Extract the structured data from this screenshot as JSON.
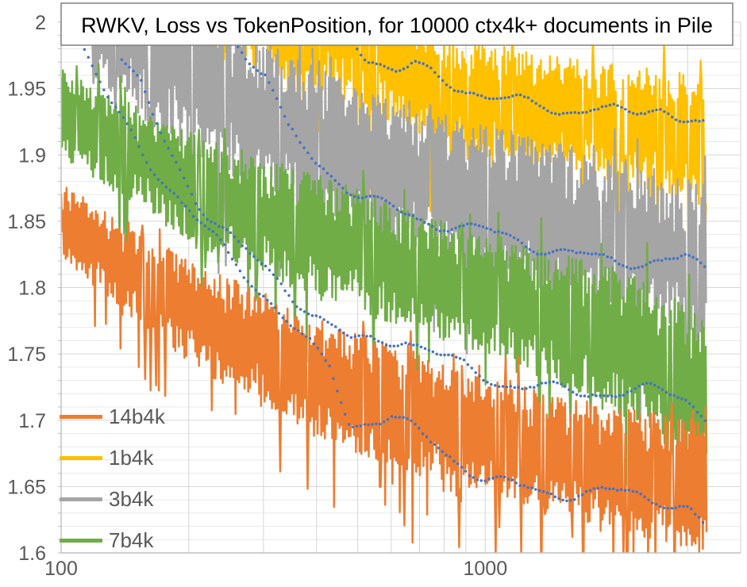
{
  "chart_data": {
    "type": "line",
    "title": "RWKV, Loss vs TokenPosition, for 10000 ctx4k+ documents in Pile",
    "xlabel": "",
    "ylabel": "",
    "x_axis": {
      "scale": "log",
      "min": 100,
      "max": 4000,
      "labeled_ticks": [
        100,
        1000
      ],
      "tick_label_strings": [
        "100",
        "1000"
      ],
      "minor_ticks": [
        200,
        300,
        400,
        500,
        600,
        700,
        800,
        900,
        1000,
        2000,
        3000,
        4000
      ]
    },
    "y_axis": {
      "min": 1.6,
      "max": 2.0,
      "major_step": 0.05,
      "minor_step": 0.01,
      "tick_labels": [
        "2",
        "1.95",
        "1.9",
        "1.85",
        "1.8",
        "1.75",
        "1.7",
        "1.65",
        "1.6"
      ]
    },
    "data_end_x": 3327,
    "legend": [
      {
        "label": "14b4k",
        "color": "#ED7D31"
      },
      {
        "label": "1b4k",
        "color": "#FFC000"
      },
      {
        "label": "3b4k",
        "color": "#A5A5A5"
      },
      {
        "label": "7b4k",
        "color": "#70AD47"
      }
    ],
    "series": [
      {
        "name": "1b4k",
        "color": "#FFC000",
        "x": [
          190,
          350,
          521,
          802,
          1200,
          1670,
          2300,
          3000,
          3327
        ],
        "center": [
          2.03,
          2.005,
          1.985,
          1.947,
          1.937,
          1.929,
          1.921,
          1.915,
          1.906
        ],
        "half": [
          0.05,
          0.05,
          0.05,
          0.044,
          0.043,
          0.043,
          0.046,
          0.046,
          0.05
        ]
      },
      {
        "name": "3b4k",
        "color": "#A5A5A5",
        "x": [
          118,
          170,
          260,
          402,
          802,
          1467,
          2300,
          3327
        ],
        "center": [
          2.01,
          1.975,
          1.94,
          1.905,
          1.873,
          1.85,
          1.835,
          1.815
        ],
        "half": [
          0.05,
          0.058,
          0.06,
          0.06,
          0.058,
          0.06,
          0.058,
          0.065
        ]
      },
      {
        "name": "7b4k",
        "color": "#70AD47",
        "x": [
          100,
          137,
          211,
          402,
          802,
          1467,
          2300,
          3327
        ],
        "center": [
          1.932,
          1.906,
          1.873,
          1.838,
          1.805,
          1.776,
          1.755,
          1.715
        ],
        "half": [
          0.034,
          0.037,
          0.042,
          0.047,
          0.045,
          0.05,
          0.057,
          0.065
        ]
      },
      {
        "name": "14b4k",
        "color": "#ED7D31",
        "x": [
          100,
          137,
          211,
          402,
          802,
          1467,
          2300,
          3327
        ],
        "center": [
          1.851,
          1.818,
          1.778,
          1.732,
          1.697,
          1.674,
          1.66,
          1.648
        ],
        "half": [
          0.028,
          0.033,
          0.04,
          0.046,
          0.046,
          0.045,
          0.047,
          0.052
        ]
      }
    ],
    "trend_lines": {
      "color": "#4472C4",
      "style": "dotted",
      "items": [
        {
          "for": "1b4k",
          "x": [
            430,
            520,
            620,
            677,
            802,
            1000,
            1236,
            1500,
            1800,
            2200,
            2600,
            3000,
            3327
          ],
          "y": [
            2.01,
            1.977,
            1.967,
            1.971,
            1.956,
            1.945,
            1.935,
            1.93,
            1.938,
            1.932,
            1.938,
            1.931,
            1.921
          ]
        },
        {
          "for": "3b4k",
          "x": [
            230,
            255,
            273,
            304,
            339,
            400,
            510,
            700,
            950,
            1300,
            1800,
            2400,
            3000,
            3327
          ],
          "y": [
            2.05,
            1.985,
            1.972,
            1.957,
            1.918,
            1.895,
            1.872,
            1.852,
            1.84,
            1.831,
            1.825,
            1.821,
            1.819,
            1.808
          ]
        },
        {
          "for": "7b4k",
          "x": [
            125,
            138,
            155,
            162,
            170,
            177,
            210,
            260,
            340,
            484,
            645,
            813,
            1096,
            1500,
            2000,
            2600,
            3000,
            3327
          ],
          "y": [
            2.06,
            1.977,
            1.951,
            1.933,
            1.917,
            1.905,
            1.862,
            1.83,
            1.8,
            1.762,
            1.76,
            1.742,
            1.728,
            1.726,
            1.722,
            1.719,
            1.713,
            1.7
          ]
        },
        {
          "for": "14b4k",
          "x": [
            100,
            112,
            131,
            163,
            205,
            250,
            320,
            430,
            480,
            600,
            825,
            1000,
            1400,
            2000,
            2600,
            3000,
            3327
          ],
          "y": [
            2.06,
            1.985,
            1.937,
            1.89,
            1.852,
            1.822,
            1.79,
            1.74,
            1.696,
            1.7,
            1.672,
            1.658,
            1.648,
            1.643,
            1.638,
            1.633,
            1.619
          ]
        }
      ]
    },
    "plot": {
      "grid_color": "#D6D6D6",
      "minor_grid_color": "#E9E9E9",
      "axis_color": "#BFBFBF",
      "tick_label_color": "#595959",
      "title_border_color": "#808080",
      "title_text_color": "#000000",
      "background": "#FFFFFF"
    }
  }
}
